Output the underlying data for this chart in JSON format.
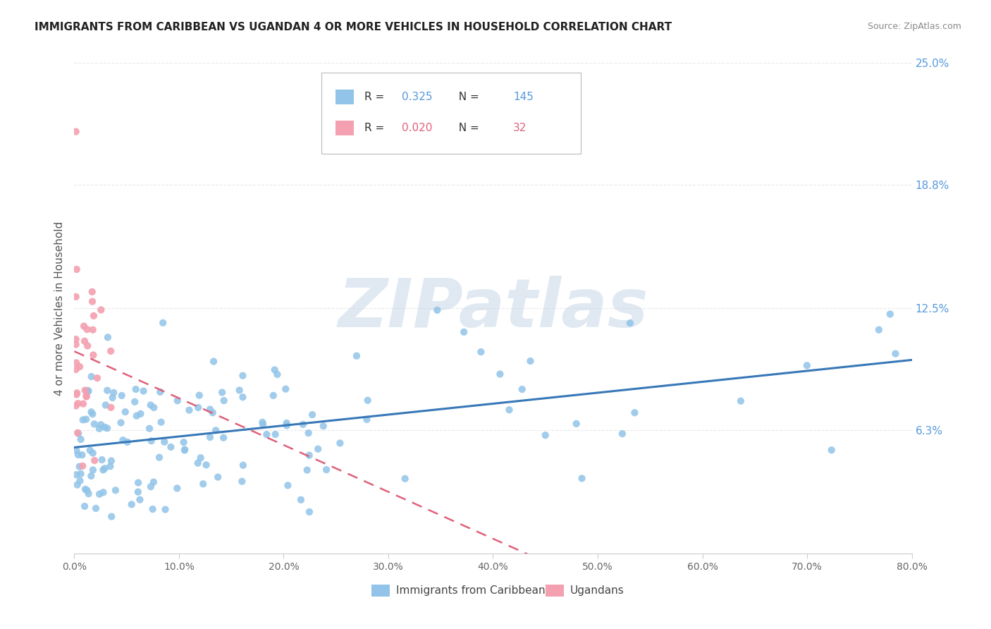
{
  "title": "IMMIGRANTS FROM CARIBBEAN VS UGANDAN 4 OR MORE VEHICLES IN HOUSEHOLD CORRELATION CHART",
  "source": "Source: ZipAtlas.com",
  "ylabel": "4 or more Vehicles in Household",
  "xlim": [
    0.0,
    80.0
  ],
  "ylim": [
    0.0,
    25.0
  ],
  "xtick_vals": [
    0,
    10,
    20,
    30,
    40,
    50,
    60,
    70,
    80
  ],
  "xtick_labels": [
    "0.0%",
    "10.0%",
    "20.0%",
    "30.0%",
    "40.0%",
    "50.0%",
    "60.0%",
    "70.0%",
    "80.0%"
  ],
  "yticks_right": [
    6.3,
    12.5,
    18.8,
    25.0
  ],
  "ytick_labels_right": [
    "6.3%",
    "12.5%",
    "18.8%",
    "25.0%"
  ],
  "caribbean_color": "#91c4e8",
  "ugandan_color": "#f4a0b0",
  "caribbean_R": 0.325,
  "caribbean_N": 145,
  "ugandan_R": 0.02,
  "ugandan_N": 32,
  "trend_caribbean_color": "#3878b8",
  "trend_ugandan_color": "#e0607a",
  "watermark": "ZIPatlas",
  "watermark_color": "#c8d8e8",
  "legend_label_caribbean": "Immigrants from Caribbean",
  "legend_label_ugandan": "Ugandans",
  "background_color": "#ffffff",
  "grid_color": "#e8e8e8",
  "right_label_color": "#5599dd"
}
